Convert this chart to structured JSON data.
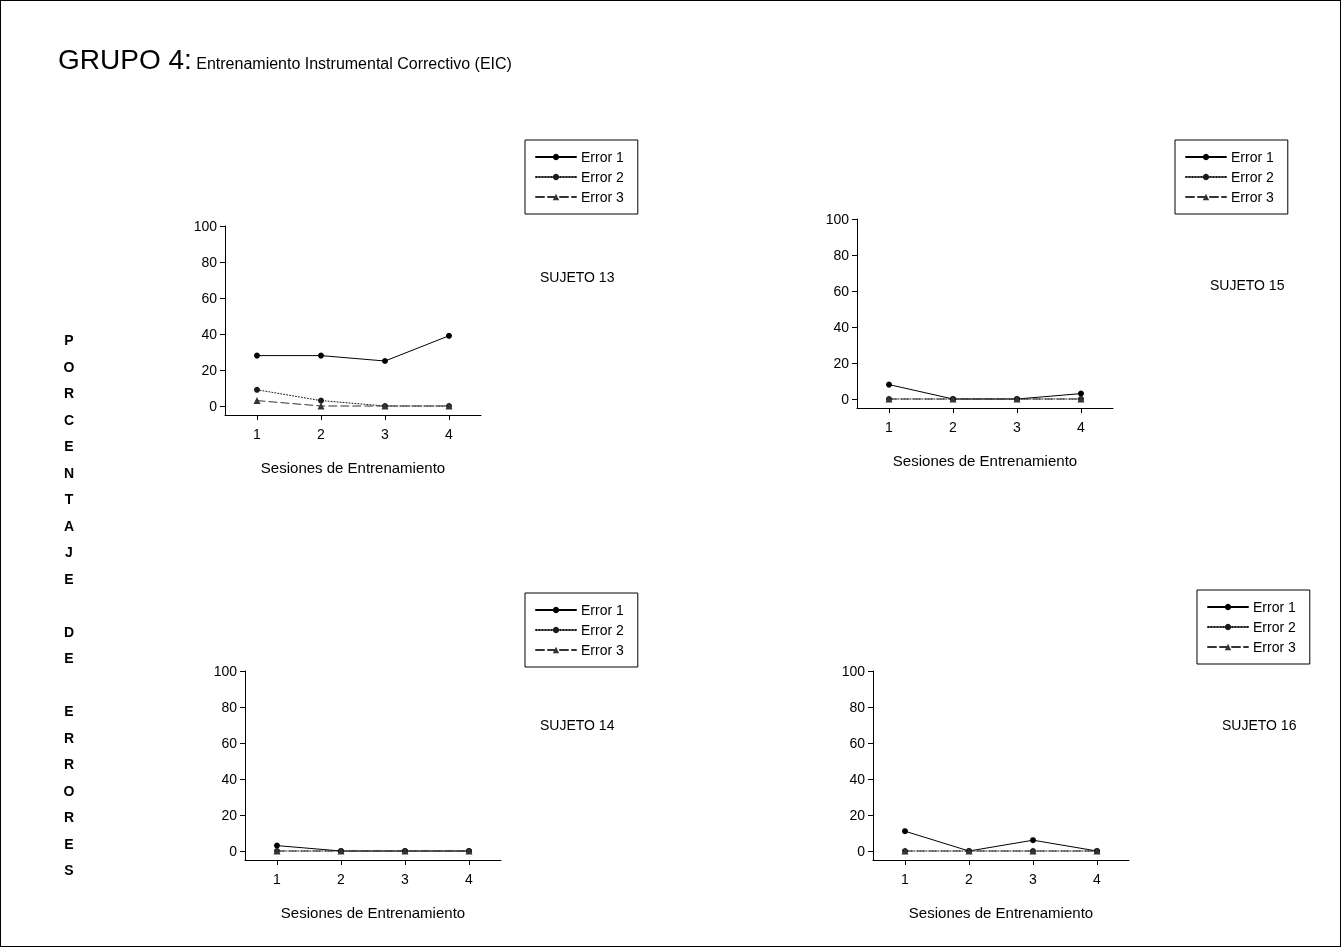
{
  "chart_data": [
    {
      "type": "line",
      "title": "GRUPO 4:",
      "subtitle": "Entrenamiento Instrumental Correctivo (EIC)",
      "ylabel": "PORCENTAJE DE ERRORES",
      "xlabel": "Sesiones de Entrenamiento",
      "annotations": [
        "SUJETO 13"
      ],
      "categories": [
        "1",
        "2",
        "3",
        "4"
      ],
      "ylim": [
        -5,
        100
      ],
      "yticks": [
        0,
        20,
        40,
        60,
        80,
        100
      ],
      "grid": false,
      "legend": "top right",
      "series": [
        {
          "name": "Error 1",
          "color": "#000000",
          "marker": "circle",
          "line_style": "solid",
          "values": [
            28,
            28,
            25,
            39
          ]
        },
        {
          "name": "Error 2",
          "color": "#1a1a1a",
          "marker": "circle",
          "line_style": "dotted",
          "values": [
            9,
            3,
            0,
            0
          ]
        },
        {
          "name": "Error 3",
          "color": "#333333",
          "marker": "triangle",
          "line_style": "dashed",
          "values": [
            3,
            0,
            0,
            0
          ]
        }
      ]
    },
    {
      "type": "line",
      "xlabel": "Sesiones de Entrenamiento",
      "annotations": [
        "SUJETO 15"
      ],
      "categories": [
        "1",
        "2",
        "3",
        "4"
      ],
      "ylim": [
        -5,
        100
      ],
      "yticks": [
        0,
        20,
        40,
        60,
        80,
        100
      ],
      "grid": false,
      "legend": "top right",
      "series": [
        {
          "name": "Error 1",
          "color": "#000000",
          "marker": "circle",
          "line_style": "solid",
          "values": [
            8,
            0,
            0,
            3
          ]
        },
        {
          "name": "Error 2",
          "color": "#1a1a1a",
          "marker": "circle",
          "line_style": "dotted",
          "values": [
            0,
            0,
            0,
            0
          ]
        },
        {
          "name": "Error 3",
          "color": "#333333",
          "marker": "triangle",
          "line_style": "dashed",
          "values": [
            0,
            0,
            0,
            0
          ]
        }
      ]
    },
    {
      "type": "line",
      "xlabel": "Sesiones de Entrenamiento",
      "annotations": [
        "SUJETO 14"
      ],
      "categories": [
        "1",
        "2",
        "3",
        "4"
      ],
      "ylim": [
        -5,
        100
      ],
      "yticks": [
        0,
        20,
        40,
        60,
        80,
        100
      ],
      "grid": false,
      "legend": "top right",
      "series": [
        {
          "name": "Error 1",
          "color": "#000000",
          "marker": "circle",
          "line_style": "solid",
          "values": [
            3,
            0,
            0,
            0
          ]
        },
        {
          "name": "Error 2",
          "color": "#1a1a1a",
          "marker": "circle",
          "line_style": "dotted",
          "values": [
            0,
            0,
            0,
            0
          ]
        },
        {
          "name": "Error 3",
          "color": "#333333",
          "marker": "triangle",
          "line_style": "dashed",
          "values": [
            0,
            0,
            0,
            0
          ]
        }
      ]
    },
    {
      "type": "line",
      "xlabel": "Sesiones de Entrenamiento",
      "annotations": [
        "SUJETO 16"
      ],
      "categories": [
        "1",
        "2",
        "3",
        "4"
      ],
      "ylim": [
        -5,
        100
      ],
      "yticks": [
        0,
        20,
        40,
        60,
        80,
        100
      ],
      "grid": false,
      "legend": "top right",
      "series": [
        {
          "name": "Error 1",
          "color": "#000000",
          "marker": "circle",
          "line_style": "solid",
          "values": [
            11,
            0,
            6,
            0
          ]
        },
        {
          "name": "Error 2",
          "color": "#1a1a1a",
          "marker": "circle",
          "line_style": "dotted",
          "values": [
            0,
            0,
            0,
            0
          ]
        },
        {
          "name": "Error 3",
          "color": "#333333",
          "marker": "triangle",
          "line_style": "dashed",
          "values": [
            0,
            0,
            0,
            0
          ]
        }
      ]
    }
  ]
}
